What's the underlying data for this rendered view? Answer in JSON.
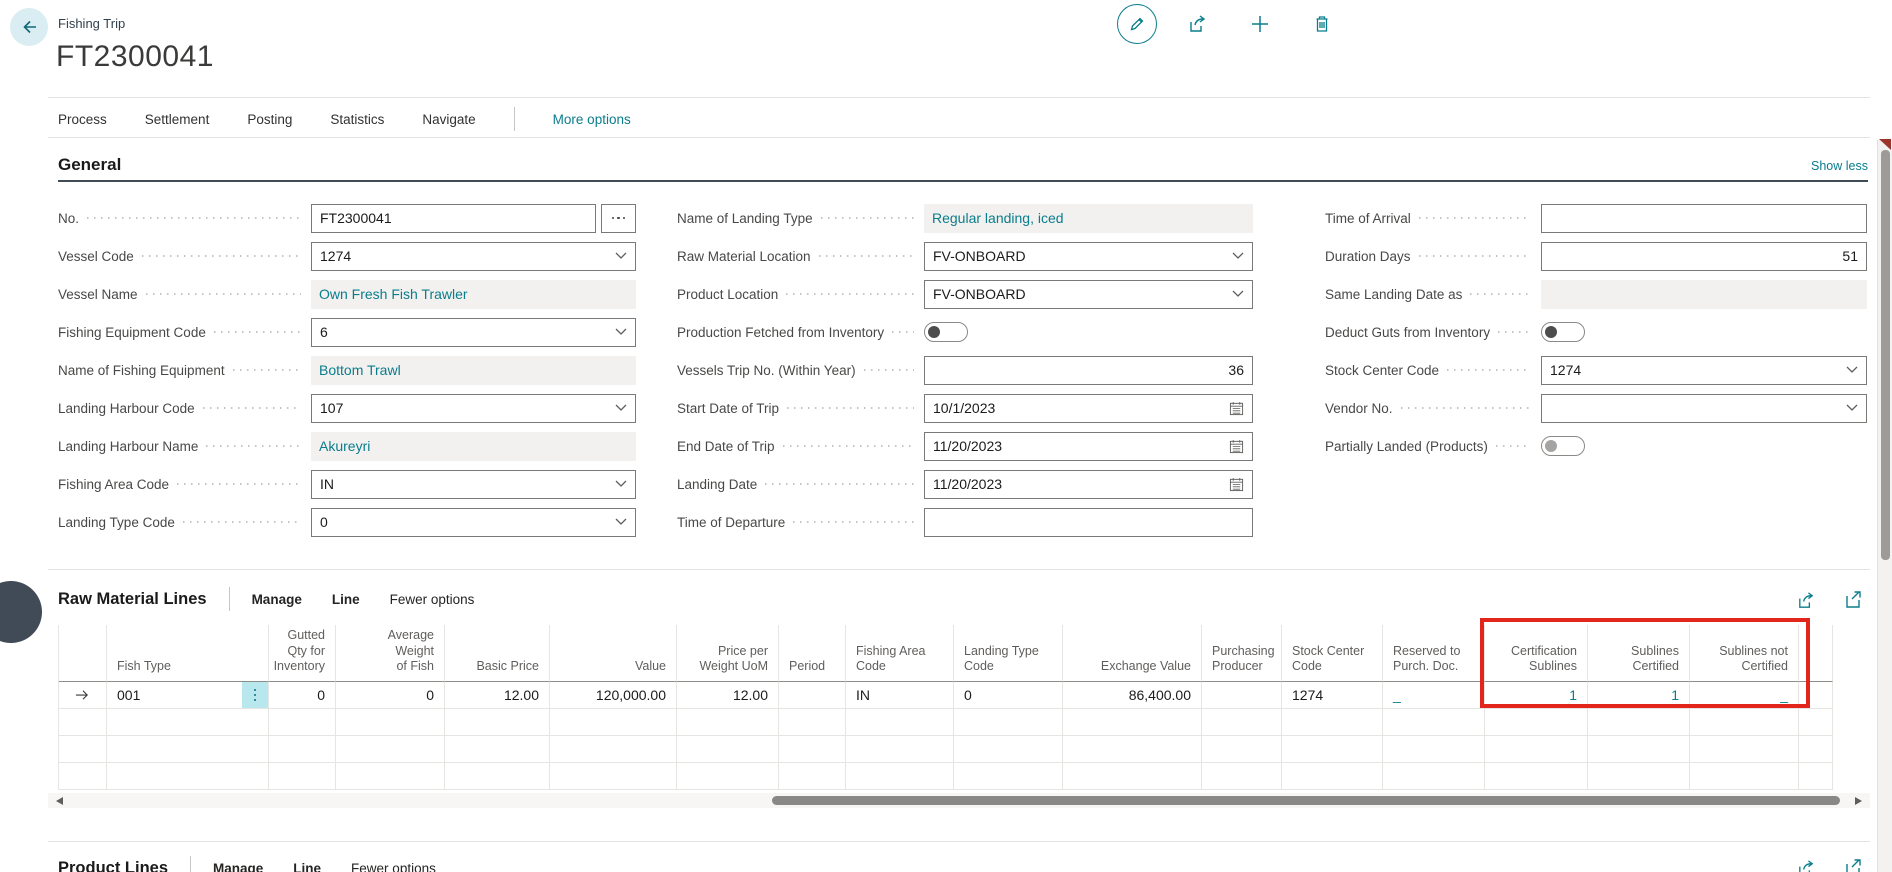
{
  "accent_color": "#0a7d8c",
  "highlight_color": "#e2261c",
  "header": {
    "caption": "Fishing Trip",
    "title": "FT2300041",
    "action_icons": [
      "edit-icon",
      "share-icon",
      "add-icon",
      "delete-icon"
    ],
    "menu": [
      "Process",
      "Settlement",
      "Posting",
      "Statistics",
      "Navigate"
    ],
    "more_options": "More options"
  },
  "general": {
    "heading": "General",
    "show_less": "Show less",
    "columns": [
      [
        {
          "label": "No.",
          "value": "FT2300041",
          "control": "lookup"
        },
        {
          "label": "Vessel Code",
          "value": "1274",
          "control": "select"
        },
        {
          "label": "Vessel Name",
          "value": "Own Fresh Fish Trawler",
          "control": "readonly"
        },
        {
          "label": "Fishing Equipment Code",
          "value": "6",
          "control": "select"
        },
        {
          "label": "Name of Fishing Equipment",
          "value": "Bottom Trawl",
          "control": "readonly"
        },
        {
          "label": "Landing Harbour Code",
          "value": "107",
          "control": "select"
        },
        {
          "label": "Landing Harbour Name",
          "value": "Akureyri",
          "control": "readonly"
        },
        {
          "label": "Fishing Area Code",
          "value": "IN",
          "control": "select"
        },
        {
          "label": "Landing Type Code",
          "value": "0",
          "control": "select"
        }
      ],
      [
        {
          "label": "Name of Landing Type",
          "value": "Regular landing, iced",
          "control": "readonly"
        },
        {
          "label": "Raw Material Location",
          "value": "FV-ONBOARD",
          "control": "select"
        },
        {
          "label": "Product Location",
          "value": "FV-ONBOARD",
          "control": "select"
        },
        {
          "label": "Production Fetched from Inventory",
          "value": "off",
          "control": "toggle",
          "disabled": false
        },
        {
          "label": "Vessels Trip No. (Within Year)",
          "value": "36",
          "control": "number"
        },
        {
          "label": "Start Date of Trip",
          "value": "10/1/2023",
          "control": "date"
        },
        {
          "label": "End Date of Trip",
          "value": "11/20/2023",
          "control": "date"
        },
        {
          "label": "Landing Date",
          "value": "11/20/2023",
          "control": "date"
        },
        {
          "label": "Time of Departure",
          "value": "",
          "control": "input"
        }
      ],
      [
        {
          "label": "Time of Arrival",
          "value": "",
          "control": "input"
        },
        {
          "label": "Duration Days",
          "value": "51",
          "control": "number"
        },
        {
          "label": "Same Landing Date as",
          "value": "",
          "control": "readonly"
        },
        {
          "label": "Deduct Guts from Inventory",
          "value": "off",
          "control": "toggle",
          "disabled": false
        },
        {
          "label": "Stock Center Code",
          "value": "1274",
          "control": "select"
        },
        {
          "label": "Vendor No.",
          "value": "",
          "control": "select"
        },
        {
          "label": "Partially Landed (Products)",
          "value": "off",
          "control": "toggle",
          "disabled": true
        }
      ]
    ]
  },
  "raw_material_lines": {
    "heading": "Raw Material Lines",
    "menu": [
      "Manage",
      "Line",
      "Fewer options"
    ],
    "part_icons": [
      "share-icon",
      "open-in-new-window-icon"
    ],
    "table": {
      "columns": [
        {
          "label": "Fish Type",
          "align": "left"
        },
        {
          "label": "Gutted Qty for\nInventory",
          "align": "right"
        },
        {
          "label": "Average Weight\nof Fish",
          "align": "right"
        },
        {
          "label": "Basic Price",
          "align": "right"
        },
        {
          "label": "Value",
          "align": "right"
        },
        {
          "label": "Price per\nWeight UoM",
          "align": "right"
        },
        {
          "label": "Period",
          "align": "left"
        },
        {
          "label": "Fishing Area\nCode",
          "align": "left"
        },
        {
          "label": "Landing Type\nCode",
          "align": "left"
        },
        {
          "label": "Exchange Value",
          "align": "right"
        },
        {
          "label": "Purchasing\nProducer",
          "align": "left"
        },
        {
          "label": "Stock Center\nCode",
          "align": "left"
        },
        {
          "label": "Reserved to\nPurch. Doc.",
          "align": "left",
          "link": true
        },
        {
          "label": "Certification\nSublines",
          "align": "right",
          "link": true,
          "highlighted": true
        },
        {
          "label": "Sublines\nCertified",
          "align": "right",
          "link": true,
          "highlighted": true
        },
        {
          "label": "Sublines not\nCertified",
          "align": "right",
          "link": true,
          "highlighted": true
        }
      ],
      "rows": [
        [
          "001",
          "0",
          "0",
          "12.00",
          "120,000.00",
          "12.00",
          "",
          "IN",
          "0",
          "86,400.00",
          "",
          "1274",
          "_",
          "1",
          "1",
          "_"
        ]
      ],
      "empty_row_count": 3
    }
  },
  "product_lines": {
    "heading": "Product Lines",
    "menu": [
      "Manage",
      "Line",
      "Fewer options"
    ],
    "part_icons": [
      "share-icon",
      "open-in-new-window-icon"
    ]
  }
}
